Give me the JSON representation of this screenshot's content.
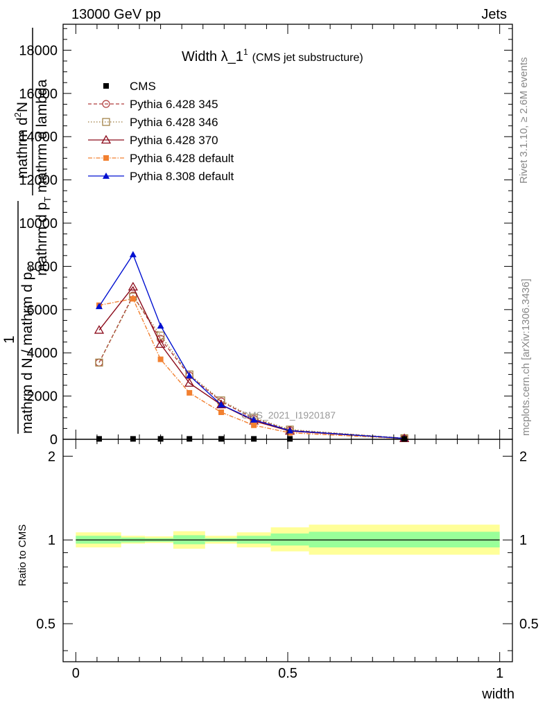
{
  "header": {
    "left": "13000 GeV pp",
    "right": "Jets"
  },
  "side_text": {
    "rivet": "Rivet 3.1.10, ≥ 2.6M events",
    "mcplots": "mcplots.cern.ch [arXiv:1306.3436]"
  },
  "watermark": "CMS_2021_I1920187",
  "main_title": {
    "text": "Width λ_1",
    "sup": "1",
    "small": "(CMS jet substructure)"
  },
  "ylabel_main": {
    "line1": "mathrm d",
    "sup1": "2",
    "line1b": "N",
    "line2": "mathrm d p",
    "sub2": "T",
    "line2b": " mathrm d lambda",
    "big": "1",
    "line3": "mathrm d N / mathrm d p",
    "sub3": "T"
  },
  "ylabel_ratio": "Ratio to CMS",
  "xlabel": "width",
  "colors": {
    "cms": "#000000",
    "p345": "#b03a3a",
    "p346": "#9c7a3c",
    "p370": "#8b0a1a",
    "p6def": "#f28030",
    "p8def": "#0010d0",
    "band_outer": "#ffff99",
    "band_inner": "#99ff99"
  },
  "chart_data": [
    {
      "type": "line",
      "title": "Width λ_1^1 (CMS jet substructure)",
      "xlim": [
        -0.03,
        1.03
      ],
      "ylim": [
        0,
        19200
      ],
      "yticks": [
        "0",
        "2000",
        "4000",
        "6000",
        "8000",
        "10000",
        "12000",
        "14000",
        "16000",
        "18000"
      ],
      "ytick_values": [
        0,
        2000,
        4000,
        6000,
        8000,
        10000,
        12000,
        14000,
        16000,
        18000
      ],
      "xticks": [
        "0",
        "0.5",
        "1"
      ],
      "xtick_values": [
        0,
        0.5,
        1
      ],
      "cms": {
        "name": "CMS",
        "x": [
          0.055,
          0.135,
          0.2,
          0.268,
          0.343,
          0.42,
          0.505,
          0.775
        ],
        "y": [
          20,
          20,
          20,
          20,
          20,
          20,
          20,
          20
        ]
      },
      "series": [
        {
          "name": "Pythia 6.428 345",
          "marker": "circle-open",
          "dash": "5,3",
          "color": "#b03a3a",
          "x": [
            0.055,
            0.135,
            0.2,
            0.268,
            0.343,
            0.42,
            0.505,
            0.775
          ],
          "y": [
            3550,
            6650,
            4650,
            2950,
            1750,
            950,
            420,
            50
          ]
        },
        {
          "name": "Pythia 6.428 346",
          "marker": "square-open",
          "dash": "1.5,2.5",
          "color": "#9c7a3c",
          "x": [
            0.055,
            0.135,
            0.2,
            0.268,
            0.343,
            0.42,
            0.505,
            0.775
          ],
          "y": [
            3550,
            6600,
            4800,
            3000,
            1800,
            1000,
            450,
            50
          ]
        },
        {
          "name": "Pythia 6.428 370",
          "marker": "triangle-open",
          "dash": "",
          "color": "#8b0a1a",
          "x": [
            0.055,
            0.135,
            0.2,
            0.268,
            0.343,
            0.42,
            0.505,
            0.775
          ],
          "y": [
            5050,
            7050,
            4400,
            2600,
            1600,
            850,
            380,
            40
          ]
        },
        {
          "name": "Pythia 6.428 default",
          "marker": "square-filled",
          "dash": "6,2,1.5,2",
          "color": "#f28030",
          "x": [
            0.055,
            0.135,
            0.2,
            0.268,
            0.343,
            0.42,
            0.505,
            0.775
          ],
          "y": [
            6200,
            6500,
            3700,
            2150,
            1250,
            650,
            300,
            30
          ]
        },
        {
          "name": "Pythia 8.308 default",
          "marker": "triangle-filled",
          "dash": "",
          "color": "#0010d0",
          "x": [
            0.055,
            0.135,
            0.2,
            0.268,
            0.343,
            0.42,
            0.505,
            0.775
          ],
          "y": [
            6150,
            8550,
            5250,
            2950,
            1600,
            900,
            400,
            40
          ]
        }
      ]
    },
    {
      "type": "area",
      "ylabel": "Ratio to CMS",
      "xlabel": "width",
      "xlim": [
        -0.03,
        1.03
      ],
      "ylim": [
        0.365,
        2.3
      ],
      "yticks": [
        "0.5",
        "1",
        "2"
      ],
      "ytick_values": [
        0.5,
        1,
        2
      ],
      "xticks": [
        "0",
        "0.5",
        "1"
      ],
      "xtick_values": [
        0,
        0.5,
        1
      ],
      "bins": [
        {
          "x": [
            0,
            0.107
          ],
          "outer": [
            0.94,
            1.065
          ],
          "inner": [
            0.97,
            1.035
          ]
        },
        {
          "x": [
            0.107,
            0.163
          ],
          "outer": [
            0.97,
            1.035
          ],
          "inner": [
            0.98,
            1.02
          ]
        },
        {
          "x": [
            0.163,
            0.23
          ],
          "outer": [
            0.975,
            1.03
          ],
          "inner": [
            0.985,
            1.015
          ]
        },
        {
          "x": [
            0.23,
            0.305
          ],
          "outer": [
            0.93,
            1.075
          ],
          "inner": [
            0.965,
            1.04
          ]
        },
        {
          "x": [
            0.305,
            0.38
          ],
          "outer": [
            0.97,
            1.035
          ],
          "inner": [
            0.985,
            1.015
          ]
        },
        {
          "x": [
            0.38,
            0.46
          ],
          "outer": [
            0.94,
            1.065
          ],
          "inner": [
            0.97,
            1.035
          ]
        },
        {
          "x": [
            0.46,
            0.55
          ],
          "outer": [
            0.91,
            1.11
          ],
          "inner": [
            0.955,
            1.055
          ]
        },
        {
          "x": [
            0.55,
            1.0
          ],
          "outer": [
            0.885,
            1.135
          ],
          "inner": [
            0.94,
            1.07
          ]
        }
      ]
    }
  ]
}
